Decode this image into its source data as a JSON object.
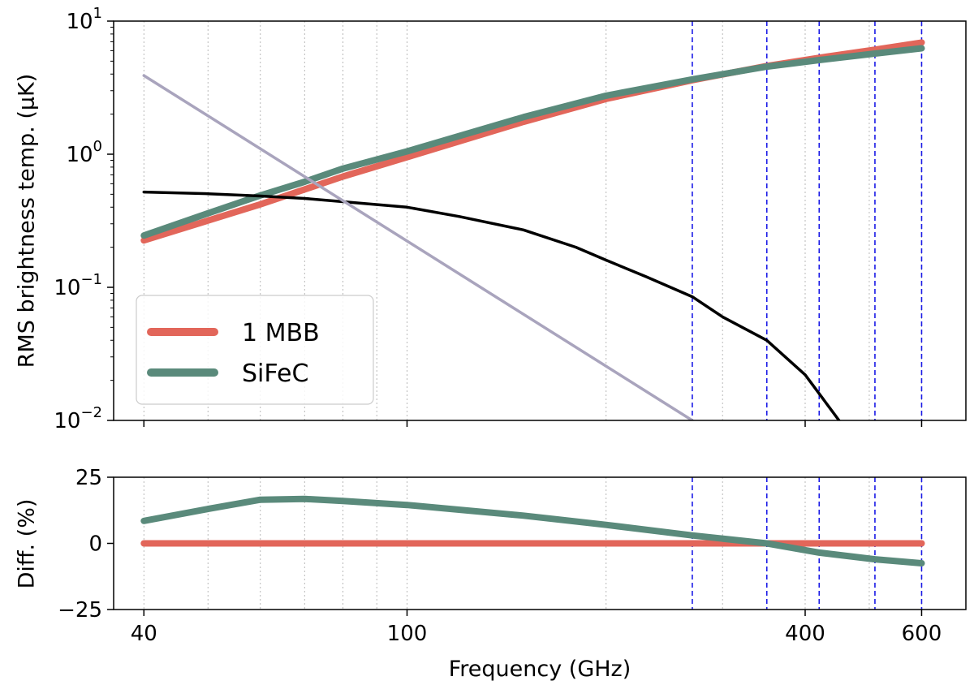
{
  "chart_data": [
    {
      "type": "line",
      "xscale": "log",
      "yscale": "log",
      "xlim": [
        36,
        700
      ],
      "ylim": [
        0.01,
        10
      ],
      "ylabel": "RMS brightness temp. (μK)",
      "ytick_labels": [
        {
          "value": 10,
          "base": "10",
          "exp": "1"
        },
        {
          "value": 1,
          "base": "10",
          "exp": "0"
        },
        {
          "value": 0.1,
          "base": "10",
          "exp": "−1"
        },
        {
          "value": 0.01,
          "base": "10",
          "exp": "−2"
        }
      ],
      "grid": "vertical",
      "band_markers_ghz": [
        270,
        350,
        420,
        510,
        600
      ],
      "legend": {
        "placement": "lower-left",
        "entries": [
          "1 MBB",
          "SiFeC"
        ]
      },
      "series": [
        {
          "name": "1 MBB",
          "color": "#e2665a",
          "x": [
            40,
            60,
            80,
            100,
            150,
            200,
            270,
            350,
            420,
            510,
            600
          ],
          "y": [
            0.225,
            0.42,
            0.68,
            0.95,
            1.75,
            2.6,
            3.6,
            4.6,
            5.3,
            6.1,
            6.9
          ]
        },
        {
          "name": "SiFeC",
          "color": "#5a8a7b",
          "x": [
            40,
            50,
            60,
            70,
            80,
            100,
            150,
            200,
            270,
            350,
            420,
            510,
            600
          ],
          "y": [
            0.245,
            0.36,
            0.49,
            0.62,
            0.78,
            1.05,
            1.9,
            2.75,
            3.65,
            4.55,
            5.1,
            5.7,
            6.25
          ]
        },
        {
          "color": "#000000",
          "x": [
            40,
            50,
            60,
            70,
            80,
            100,
            120,
            150,
            180,
            200,
            230,
            270,
            300,
            350,
            400,
            450
          ],
          "y": [
            0.52,
            0.505,
            0.485,
            0.465,
            0.44,
            0.4,
            0.34,
            0.27,
            0.2,
            0.16,
            0.12,
            0.085,
            0.06,
            0.04,
            0.022,
            0.01
          ]
        },
        {
          "color": "#a9a4bd",
          "x": [
            40,
            270
          ],
          "y": [
            3.9,
            0.01
          ]
        }
      ]
    },
    {
      "type": "line",
      "xscale": "log",
      "xlim": [
        36,
        700
      ],
      "ylim": [
        -25,
        25
      ],
      "xlabel": "Frequency (GHz)",
      "ylabel": "Diff. (%)",
      "yticks": [
        25,
        0,
        -25
      ],
      "ytick_labels": [
        "25",
        "0",
        "−25"
      ],
      "xtick_labels": [
        {
          "value": 40,
          "label": "40"
        },
        {
          "value": 100,
          "label": "100"
        },
        {
          "value": 400,
          "label": "400"
        },
        {
          "value": 600,
          "label": "600"
        }
      ],
      "grid": "vertical",
      "band_markers_ghz": [
        270,
        350,
        420,
        510,
        600
      ],
      "series": [
        {
          "name": "1 MBB",
          "color": "#e2665a",
          "x": [
            40,
            600
          ],
          "y": [
            0,
            0
          ]
        },
        {
          "name": "SiFeC",
          "color": "#5a8a7b",
          "x": [
            40,
            50,
            60,
            70,
            80,
            100,
            150,
            200,
            270,
            350,
            420,
            510,
            600
          ],
          "y": [
            8.5,
            13,
            16.5,
            16.8,
            16,
            14.5,
            10.5,
            7,
            3,
            0,
            -3.5,
            -6,
            -7.5
          ]
        }
      ]
    }
  ]
}
